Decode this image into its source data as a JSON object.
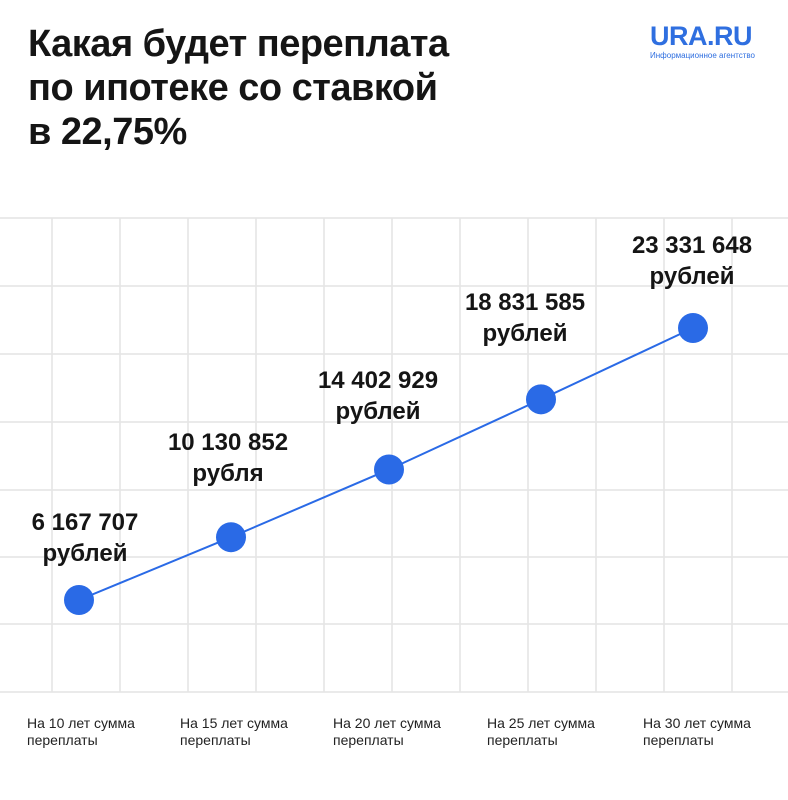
{
  "title_lines": [
    "Какая будет переплата",
    "по ипотеке со ставкой",
    "в 22,75%"
  ],
  "logo": {
    "name": "URA.RU",
    "subtitle": "Информационное агентство"
  },
  "colors": {
    "accent": "#2f6fe0",
    "point": "#2a6ae6",
    "grid": "#e4e4e4",
    "text": "#151515"
  },
  "chart_data": {
    "type": "line",
    "title": "Какая будет переплата по ипотеке со ставкой в 22,75%",
    "xlabel": "",
    "ylabel": "",
    "grid": true,
    "categories": [
      [
        "На 10 лет сумма",
        "переплаты"
      ],
      [
        "На 15 лет сумма",
        "переплаты"
      ],
      [
        "На 20 лет сумма",
        "переплаты"
      ],
      [
        "На 25 лет сумма",
        "переплаты"
      ],
      [
        "На 30 лет сумма",
        "переплаты"
      ]
    ],
    "values": [
      6167707,
      10130852,
      14402929,
      18831585,
      23331648
    ],
    "data_labels": [
      [
        "6 167 707",
        "рублей"
      ],
      [
        "10 130 852",
        "рубля"
      ],
      [
        "14 402 929",
        "рублей"
      ],
      [
        "18 831 585",
        "рублей"
      ],
      [
        "23 331 648",
        "рублей"
      ]
    ]
  }
}
